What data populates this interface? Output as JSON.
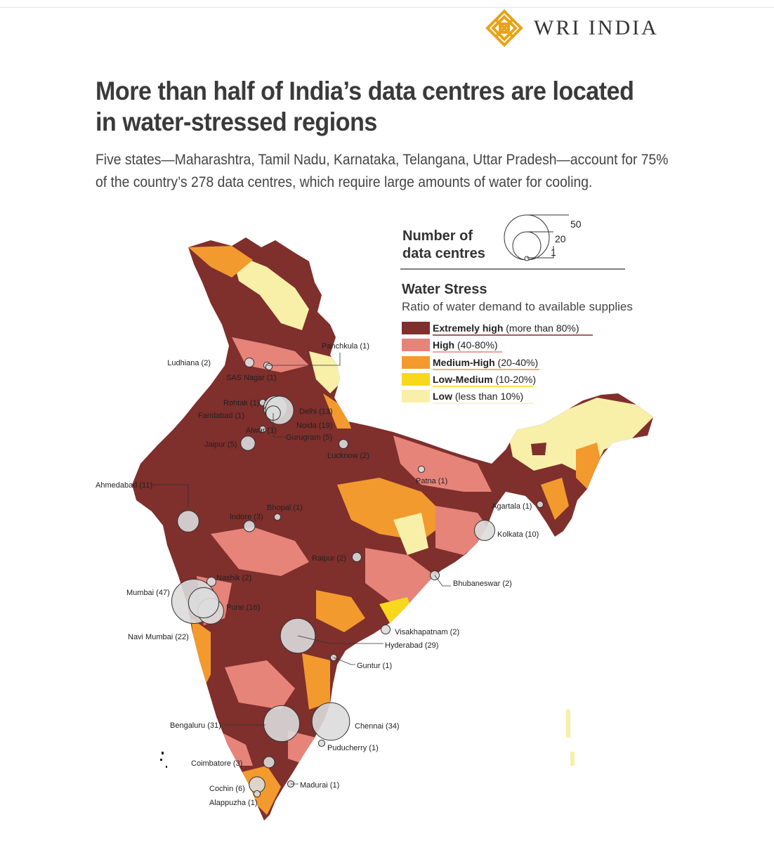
{
  "brand": {
    "name": "WRI INDIA"
  },
  "title": "More than half of India’s data centres are located in water-stressed regions",
  "subtitle": "Five states—Maharashtra, Tamil Nadu, Karnataka, Telangana, Uttar Pradesh—account for 75% of the country’s 278 data centres, which require large amounts of water for cooling.",
  "legend": {
    "size_title": [
      "Number of",
      "data centres"
    ],
    "size_values": [
      "50",
      "20",
      "1"
    ],
    "stress_title": "Water Stress",
    "stress_subtitle": "Ratio of water demand to available supplies",
    "categories": [
      {
        "bold": "Extremely high",
        "range": "(more than 80%)",
        "color": "#7f2f2c"
      },
      {
        "bold": "High",
        "range": "(40-80%)",
        "color": "#e6847a"
      },
      {
        "bold": "Medium-High",
        "range": "(20-40%)",
        "color": "#f29a2e"
      },
      {
        "bold": "Low-Medium",
        "range": "(10-20%)",
        "color": "#f7d81d"
      },
      {
        "bold": "Low",
        "range": "(less than 10%)",
        "color": "#f8f0a8"
      }
    ]
  },
  "cities": [
    {
      "label": "Panchkula (1)",
      "count": 1
    },
    {
      "label": "Ludhiana (2)",
      "count": 2
    },
    {
      "label": "SAS Nagar (1)",
      "count": 1
    },
    {
      "label": "Rohtak (1)",
      "count": 1
    },
    {
      "label": "Delhi (13)",
      "count": 13
    },
    {
      "label": "Faridabad (1)",
      "count": 1
    },
    {
      "label": "Noida (19)",
      "count": 19
    },
    {
      "label": "Alwar (1)",
      "count": 1
    },
    {
      "label": "Gurugram (5)",
      "count": 5
    },
    {
      "label": "Jaipur (5)",
      "count": 5
    },
    {
      "label": "Lucknow (2)",
      "count": 2
    },
    {
      "label": "Patna (1)",
      "count": 1
    },
    {
      "label": "Agartala (1)",
      "count": 1
    },
    {
      "label": "Ahmedabad (11)",
      "count": 11
    },
    {
      "label": "Bhopal (1)",
      "count": 1
    },
    {
      "label": "Indore (3)",
      "count": 3
    },
    {
      "label": "Kolkata (10)",
      "count": 10
    },
    {
      "label": "Raipur (2)",
      "count": 2
    },
    {
      "label": "Nashik (2)",
      "count": 2
    },
    {
      "label": "Bhubaneswar (2)",
      "count": 2
    },
    {
      "label": "Mumbai (47)",
      "count": 47
    },
    {
      "label": "Pune (16)",
      "count": 16
    },
    {
      "label": "Visakhapatnam (2)",
      "count": 2
    },
    {
      "label": "Navi Mumbai (22)",
      "count": 22
    },
    {
      "label": "Hyderabad (29)",
      "count": 29
    },
    {
      "label": "Guntur (1)",
      "count": 1
    },
    {
      "label": "Bengaluru (31)",
      "count": 31
    },
    {
      "label": "Chennai (34)",
      "count": 34
    },
    {
      "label": "Puducherry (1)",
      "count": 1
    },
    {
      "label": "Coimbatore (3)",
      "count": 3
    },
    {
      "label": "Cochin (6)",
      "count": 6
    },
    {
      "label": "Madurai (1)",
      "count": 1
    },
    {
      "label": "Alappuzha (1)",
      "count": 1
    }
  ]
}
